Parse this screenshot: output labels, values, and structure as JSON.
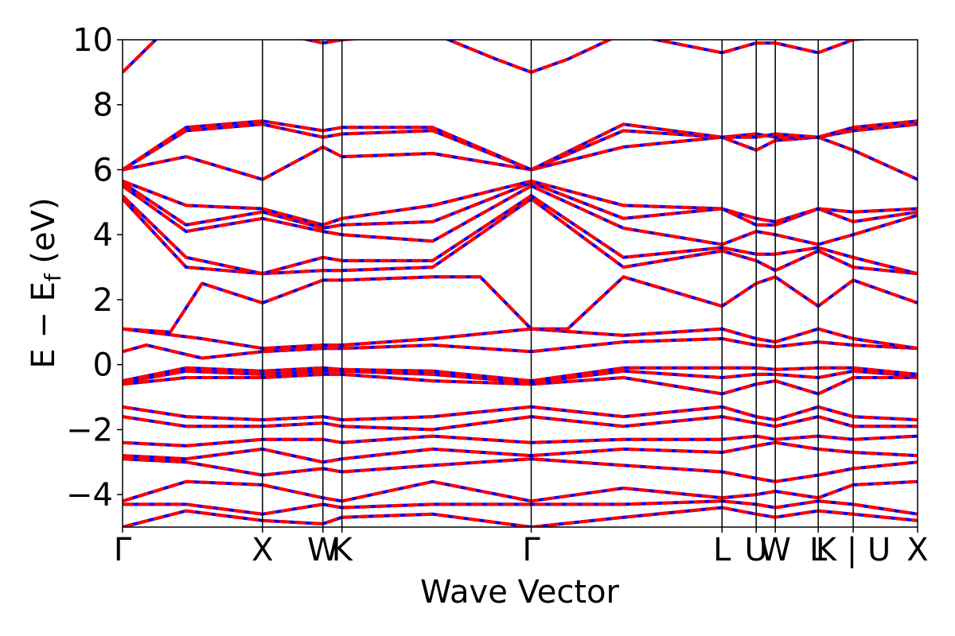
{
  "chart_data": {
    "type": "line",
    "title": "",
    "xlabel": "Wave Vector",
    "ylabel": "E − E",
    "ylabel_sub": "f",
    "ylabel_unit": " (eV)",
    "ylim": [
      -5,
      10
    ],
    "yticks": [
      {
        "value": 10,
        "label": "10"
      },
      {
        "value": 8,
        "label": "8"
      },
      {
        "value": 6,
        "label": "6"
      },
      {
        "value": 4,
        "label": "4"
      },
      {
        "value": 2,
        "label": "2"
      },
      {
        "value": 0,
        "label": "0"
      },
      {
        "value": -2,
        "label": "−2"
      },
      {
        "value": -4,
        "label": "−4"
      }
    ],
    "xlim": [
      0,
      10
    ],
    "kpoints": [
      {
        "x": 0.0,
        "label": "Γ"
      },
      {
        "x": 1.76,
        "label": "X"
      },
      {
        "x": 2.52,
        "label": "W"
      },
      {
        "x": 2.76,
        "label": "K"
      },
      {
        "x": 5.14,
        "label": "Γ"
      },
      {
        "x": 7.54,
        "label": "L"
      },
      {
        "x": 7.97,
        "label": "U"
      },
      {
        "x": 8.21,
        "label": "W"
      },
      {
        "x": 8.75,
        "label": "L"
      },
      {
        "x": 9.19,
        "label": "K | U"
      },
      {
        "x": 10.0,
        "label": "X"
      }
    ],
    "vertical_lines_at": [
      1.76,
      2.52,
      2.76,
      5.14,
      7.54,
      7.97,
      8.21,
      8.75,
      9.19
    ],
    "series": [
      {
        "color": "#0000ff",
        "style": "solid"
      },
      {
        "color": "#ff0000",
        "style": "dashed"
      }
    ],
    "bands": [
      [
        [
          0,
          -5.0
        ],
        [
          0.8,
          -4.5
        ],
        [
          1.76,
          -4.8
        ],
        [
          2.52,
          -4.9
        ],
        [
          2.76,
          -4.7
        ],
        [
          3.9,
          -4.6
        ],
        [
          5.14,
          -5.0
        ],
        [
          6.3,
          -4.7
        ],
        [
          7.54,
          -4.4
        ],
        [
          7.97,
          -4.6
        ],
        [
          8.21,
          -4.7
        ],
        [
          8.75,
          -4.5
        ],
        [
          9.19,
          -4.6
        ],
        [
          10,
          -4.8
        ]
      ],
      [
        [
          0,
          -4.3
        ],
        [
          0.8,
          -4.3
        ],
        [
          1.76,
          -4.6
        ],
        [
          2.52,
          -4.3
        ],
        [
          2.76,
          -4.4
        ],
        [
          3.9,
          -4.3
        ],
        [
          5.14,
          -4.3
        ],
        [
          6.3,
          -4.3
        ],
        [
          7.54,
          -4.2
        ],
        [
          7.97,
          -4.3
        ],
        [
          8.21,
          -4.4
        ],
        [
          8.75,
          -4.2
        ],
        [
          9.19,
          -4.3
        ],
        [
          10,
          -4.6
        ]
      ],
      [
        [
          0,
          -4.2
        ],
        [
          0.8,
          -3.6
        ],
        [
          1.76,
          -3.7
        ],
        [
          2.52,
          -4.1
        ],
        [
          2.76,
          -4.2
        ],
        [
          3.9,
          -3.6
        ],
        [
          5.14,
          -4.2
        ],
        [
          6.3,
          -3.8
        ],
        [
          7.54,
          -4.1
        ],
        [
          7.97,
          -4.0
        ],
        [
          8.21,
          -3.9
        ],
        [
          8.75,
          -4.1
        ],
        [
          9.19,
          -3.7
        ],
        [
          10,
          -3.6
        ]
      ],
      [
        [
          0,
          -2.9
        ],
        [
          0.8,
          -3.0
        ],
        [
          1.76,
          -3.4
        ],
        [
          2.52,
          -3.2
        ],
        [
          2.76,
          -3.3
        ],
        [
          3.9,
          -3.1
        ],
        [
          5.14,
          -2.9
        ],
        [
          6.3,
          -3.1
        ],
        [
          7.54,
          -3.3
        ],
        [
          7.97,
          -3.5
        ],
        [
          8.21,
          -3.6
        ],
        [
          8.75,
          -3.4
        ],
        [
          9.19,
          -3.2
        ],
        [
          10,
          -3.0
        ]
      ],
      [
        [
          0,
          -2.8
        ],
        [
          0.8,
          -2.9
        ],
        [
          1.76,
          -2.6
        ],
        [
          2.52,
          -3.0
        ],
        [
          2.76,
          -2.9
        ],
        [
          3.9,
          -2.6
        ],
        [
          5.14,
          -2.8
        ],
        [
          6.3,
          -2.6
        ],
        [
          7.54,
          -2.7
        ],
        [
          7.97,
          -2.5
        ],
        [
          8.21,
          -2.4
        ],
        [
          8.75,
          -2.6
        ],
        [
          9.19,
          -2.7
        ],
        [
          10,
          -2.8
        ]
      ],
      [
        [
          0,
          -2.4
        ],
        [
          0.8,
          -2.5
        ],
        [
          1.76,
          -2.3
        ],
        [
          2.52,
          -2.3
        ],
        [
          2.76,
          -2.4
        ],
        [
          3.9,
          -2.2
        ],
        [
          5.14,
          -2.4
        ],
        [
          6.3,
          -2.3
        ],
        [
          7.54,
          -2.3
        ],
        [
          7.97,
          -2.2
        ],
        [
          8.21,
          -2.3
        ],
        [
          8.75,
          -2.2
        ],
        [
          9.19,
          -2.3
        ],
        [
          10,
          -2.2
        ]
      ],
      [
        [
          0,
          -1.6
        ],
        [
          0.8,
          -1.9
        ],
        [
          1.76,
          -1.9
        ],
        [
          2.52,
          -1.8
        ],
        [
          2.76,
          -1.9
        ],
        [
          3.9,
          -2.0
        ],
        [
          5.14,
          -1.6
        ],
        [
          6.3,
          -1.9
        ],
        [
          7.54,
          -1.6
        ],
        [
          7.97,
          -1.8
        ],
        [
          8.21,
          -1.9
        ],
        [
          8.75,
          -1.6
        ],
        [
          9.19,
          -1.9
        ],
        [
          10,
          -1.9
        ]
      ],
      [
        [
          0,
          -1.3
        ],
        [
          0.8,
          -1.6
        ],
        [
          1.76,
          -1.7
        ],
        [
          2.52,
          -1.6
        ],
        [
          2.76,
          -1.7
        ],
        [
          3.9,
          -1.6
        ],
        [
          5.14,
          -1.3
        ],
        [
          6.3,
          -1.6
        ],
        [
          7.54,
          -1.3
        ],
        [
          7.97,
          -1.6
        ],
        [
          8.21,
          -1.7
        ],
        [
          8.75,
          -1.3
        ],
        [
          9.19,
          -1.6
        ],
        [
          10,
          -1.7
        ]
      ],
      [
        [
          0,
          -0.6
        ],
        [
          0.8,
          -0.4
        ],
        [
          1.76,
          -0.4
        ],
        [
          2.52,
          -0.3
        ],
        [
          2.76,
          -0.3
        ],
        [
          3.9,
          -0.5
        ],
        [
          5.14,
          -0.6
        ],
        [
          6.3,
          -0.4
        ],
        [
          7.54,
          -0.9
        ],
        [
          7.97,
          -0.6
        ],
        [
          8.21,
          -0.5
        ],
        [
          8.75,
          -0.9
        ],
        [
          9.19,
          -0.4
        ],
        [
          10,
          -0.4
        ]
      ],
      [
        [
          0,
          -0.55
        ],
        [
          0.8,
          -0.2
        ],
        [
          1.76,
          -0.3
        ],
        [
          2.52,
          -0.2
        ],
        [
          2.76,
          -0.2
        ],
        [
          3.9,
          -0.3
        ],
        [
          5.14,
          -0.55
        ],
        [
          6.3,
          -0.2
        ],
        [
          7.54,
          -0.4
        ],
        [
          7.97,
          -0.3
        ],
        [
          8.21,
          -0.3
        ],
        [
          8.75,
          -0.4
        ],
        [
          9.19,
          -0.2
        ],
        [
          10,
          -0.35
        ]
      ],
      [
        [
          0,
          -0.5
        ],
        [
          0.8,
          -0.1
        ],
        [
          1.76,
          -0.2
        ],
        [
          2.52,
          -0.1
        ],
        [
          2.76,
          -0.15
        ],
        [
          3.9,
          -0.2
        ],
        [
          5.14,
          -0.5
        ],
        [
          6.3,
          -0.1
        ],
        [
          7.54,
          -0.1
        ],
        [
          7.97,
          -0.1
        ],
        [
          8.21,
          -0.15
        ],
        [
          8.75,
          -0.1
        ],
        [
          9.19,
          -0.1
        ],
        [
          10,
          -0.3
        ]
      ],
      [
        [
          0,
          0.4
        ],
        [
          0.3,
          0.6
        ],
        [
          1.0,
          0.2
        ],
        [
          1.76,
          0.4
        ],
        [
          2.52,
          0.5
        ],
        [
          2.76,
          0.5
        ],
        [
          3.9,
          0.6
        ],
        [
          5.14,
          0.4
        ],
        [
          6.3,
          0.7
        ],
        [
          7.54,
          0.8
        ],
        [
          7.97,
          0.6
        ],
        [
          8.21,
          0.55
        ],
        [
          8.75,
          0.7
        ],
        [
          9.19,
          0.6
        ],
        [
          10,
          0.5
        ]
      ],
      [
        [
          0,
          1.1
        ],
        [
          1.0,
          0.8
        ],
        [
          1.76,
          0.5
        ],
        [
          2.52,
          0.6
        ],
        [
          2.76,
          0.6
        ],
        [
          3.9,
          0.8
        ],
        [
          5.14,
          1.1
        ],
        [
          6.3,
          0.9
        ],
        [
          7.54,
          1.1
        ],
        [
          7.97,
          0.8
        ],
        [
          8.21,
          0.7
        ],
        [
          8.75,
          1.1
        ],
        [
          9.19,
          0.8
        ],
        [
          10,
          0.5
        ]
      ],
      [
        [
          0,
          1.1
        ],
        [
          0.6,
          1.0
        ],
        [
          1.0,
          2.5
        ],
        [
          1.76,
          1.9
        ],
        [
          2.52,
          2.6
        ],
        [
          2.76,
          2.6
        ],
        [
          3.9,
          2.7
        ],
        [
          4.5,
          2.7
        ],
        [
          5.14,
          1.1
        ],
        [
          5.6,
          1.1
        ],
        [
          6.3,
          2.7
        ],
        [
          7.54,
          1.8
        ],
        [
          7.97,
          2.5
        ],
        [
          8.21,
          2.7
        ],
        [
          8.75,
          1.8
        ],
        [
          9.19,
          2.6
        ],
        [
          10,
          1.9
        ]
      ],
      [
        [
          0,
          5.1
        ],
        [
          0.8,
          3.0
        ],
        [
          1.76,
          2.8
        ],
        [
          2.52,
          2.9
        ],
        [
          2.76,
          2.9
        ],
        [
          3.9,
          3.0
        ],
        [
          5.14,
          5.1
        ],
        [
          6.3,
          3.0
        ],
        [
          7.54,
          3.5
        ],
        [
          7.97,
          3.2
        ],
        [
          8.21,
          2.9
        ],
        [
          8.75,
          3.5
        ],
        [
          9.19,
          3.0
        ],
        [
          10,
          2.8
        ]
      ],
      [
        [
          0,
          5.2
        ],
        [
          0.8,
          3.3
        ],
        [
          1.76,
          2.8
        ],
        [
          2.52,
          3.3
        ],
        [
          2.76,
          3.2
        ],
        [
          3.9,
          3.2
        ],
        [
          5.14,
          5.2
        ],
        [
          6.3,
          3.3
        ],
        [
          7.54,
          3.6
        ],
        [
          7.97,
          3.4
        ],
        [
          8.21,
          3.4
        ],
        [
          8.75,
          3.6
        ],
        [
          9.19,
          3.3
        ],
        [
          10,
          2.8
        ]
      ],
      [
        [
          0,
          5.5
        ],
        [
          0.8,
          4.1
        ],
        [
          1.76,
          4.5
        ],
        [
          2.52,
          4.1
        ],
        [
          2.76,
          4.0
        ],
        [
          3.9,
          3.8
        ],
        [
          5.14,
          5.5
        ],
        [
          6.3,
          4.2
        ],
        [
          7.54,
          3.7
        ],
        [
          7.97,
          4.1
        ],
        [
          8.21,
          4.0
        ],
        [
          8.75,
          3.7
        ],
        [
          9.19,
          4.0
        ],
        [
          10,
          4.6
        ]
      ],
      [
        [
          0,
          5.6
        ],
        [
          0.8,
          4.3
        ],
        [
          1.76,
          4.7
        ],
        [
          2.52,
          4.2
        ],
        [
          2.76,
          4.3
        ],
        [
          3.9,
          4.4
        ],
        [
          5.14,
          5.6
        ],
        [
          6.3,
          4.5
        ],
        [
          7.54,
          4.8
        ],
        [
          7.97,
          4.3
        ],
        [
          8.21,
          4.3
        ],
        [
          8.75,
          4.8
        ],
        [
          9.19,
          4.4
        ],
        [
          10,
          4.7
        ]
      ],
      [
        [
          0,
          5.65
        ],
        [
          0.8,
          4.9
        ],
        [
          1.76,
          4.8
        ],
        [
          2.52,
          4.3
        ],
        [
          2.76,
          4.5
        ],
        [
          3.9,
          4.9
        ],
        [
          5.14,
          5.65
        ],
        [
          6.3,
          4.9
        ],
        [
          7.54,
          4.8
        ],
        [
          7.97,
          4.5
        ],
        [
          8.21,
          4.4
        ],
        [
          8.75,
          4.8
        ],
        [
          9.19,
          4.7
        ],
        [
          10,
          4.8
        ]
      ],
      [
        [
          0,
          6.0
        ],
        [
          0.8,
          6.4
        ],
        [
          1.76,
          5.7
        ],
        [
          2.52,
          6.7
        ],
        [
          2.76,
          6.4
        ],
        [
          3.9,
          6.5
        ],
        [
          5.14,
          6.0
        ],
        [
          6.3,
          6.7
        ],
        [
          7.54,
          7.0
        ],
        [
          7.97,
          6.6
        ],
        [
          8.21,
          6.9
        ],
        [
          8.75,
          7.0
        ],
        [
          9.19,
          6.6
        ],
        [
          10,
          5.7
        ]
      ],
      [
        [
          0,
          6.0
        ],
        [
          0.8,
          7.2
        ],
        [
          1.76,
          7.4
        ],
        [
          2.52,
          7.0
        ],
        [
          2.76,
          7.1
        ],
        [
          3.9,
          7.2
        ],
        [
          5.14,
          6.0
        ],
        [
          6.3,
          7.2
        ],
        [
          7.54,
          7.0
        ],
        [
          7.97,
          7.1
        ],
        [
          8.21,
          7.0
        ],
        [
          8.75,
          7.0
        ],
        [
          9.19,
          7.2
        ],
        [
          10,
          7.4
        ]
      ],
      [
        [
          0,
          6.0
        ],
        [
          0.8,
          7.3
        ],
        [
          1.76,
          7.5
        ],
        [
          2.52,
          7.2
        ],
        [
          2.76,
          7.3
        ],
        [
          3.9,
          7.3
        ],
        [
          5.14,
          6.0
        ],
        [
          6.3,
          7.4
        ],
        [
          7.54,
          7.0
        ],
        [
          7.97,
          7.0
        ],
        [
          8.21,
          7.1
        ],
        [
          8.75,
          7.0
        ],
        [
          9.19,
          7.3
        ],
        [
          10,
          7.5
        ]
      ],
      [
        [
          0,
          9.0
        ],
        [
          0.5,
          10.2
        ],
        [
          1.76,
          10.3
        ],
        [
          2.52,
          9.9
        ],
        [
          2.76,
          10.0
        ],
        [
          3.9,
          10.2
        ],
        [
          4.7,
          9.4
        ],
        [
          5.14,
          9.0
        ],
        [
          5.6,
          9.4
        ],
        [
          6.3,
          10.2
        ],
        [
          7.54,
          9.6
        ],
        [
          7.97,
          9.9
        ],
        [
          8.21,
          9.9
        ],
        [
          8.75,
          9.6
        ],
        [
          9.19,
          10.0
        ],
        [
          10,
          10.2
        ]
      ]
    ]
  }
}
